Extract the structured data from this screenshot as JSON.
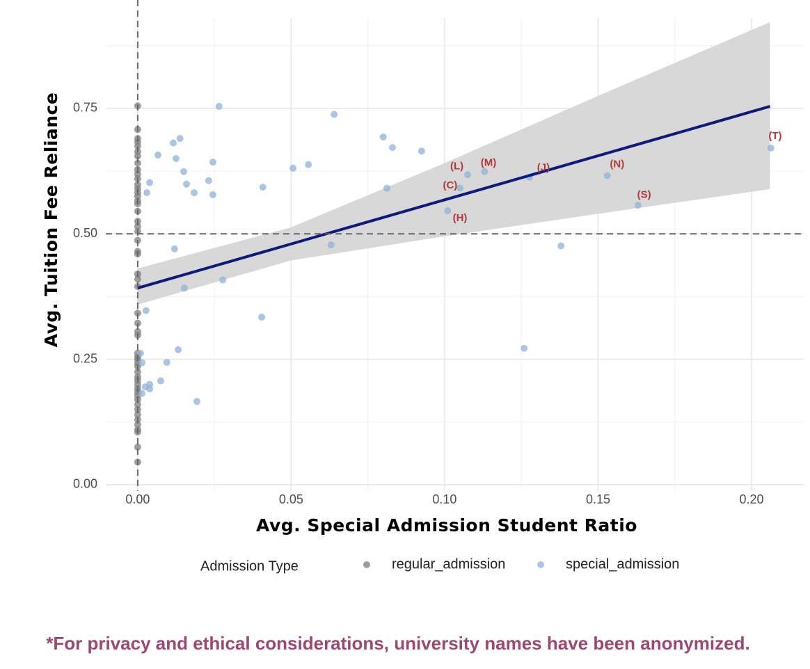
{
  "chart_data": {
    "type": "scatter",
    "xlabel": "Avg. Special Admission Student Ratio",
    "ylabel": "Avg. Tuition Fee Reliance",
    "xlim": [
      -0.0104,
      0.217
    ],
    "ylim": [
      -0.0125,
      0.93
    ],
    "xticks": [
      {
        "value": 0,
        "label": "0.00"
      },
      0.05,
      {
        "value": 0.1,
        "label": "0.10"
      },
      0.15,
      {
        "value": 0.2,
        "label": "0.20"
      }
    ],
    "yticks": [
      {
        "value": 0,
        "label": "0.00"
      },
      0.25,
      {
        "value": 0.5,
        "label": "0.50"
      },
      0.75
    ],
    "xminor": [
      0.025,
      0.075,
      0.125,
      0.175
    ],
    "yminor": [
      0.125,
      0.375,
      0.625,
      0.875
    ],
    "grid": true,
    "vlines": [
      0
    ],
    "hlines": [
      0.5
    ],
    "legend_title": "Admission Type",
    "legend": "bottom",
    "series": [
      {
        "name": "regular_admission",
        "color": "#7f7f7f",
        "x": [
          0,
          0,
          0,
          0,
          0,
          0,
          0,
          0,
          0,
          0,
          0,
          0,
          0,
          0,
          0,
          0,
          0,
          0,
          0,
          0,
          0,
          0,
          0,
          0,
          0,
          0,
          0,
          0,
          0,
          0,
          0,
          0,
          0,
          0,
          0,
          0,
          0,
          0,
          0,
          0,
          0,
          0,
          0,
          0,
          0,
          0,
          0,
          0,
          0,
          0,
          0,
          0,
          0
        ],
        "values": [
          0.755,
          0.708,
          0.69,
          0.683,
          0.675,
          0.664,
          0.655,
          0.641,
          0.628,
          0.619,
          0.61,
          0.598,
          0.59,
          0.582,
          0.575,
          0.566,
          0.56,
          0.545,
          0.525,
          0.515,
          0.505,
          0.487,
          0.465,
          0.46,
          0.42,
          0.41,
          0.395,
          0.342,
          0.322,
          0.305,
          0.298,
          0.262,
          0.255,
          0.25,
          0.243,
          0.236,
          0.225,
          0.215,
          0.208,
          0.2,
          0.192,
          0.185,
          0.178,
          0.17,
          0.16,
          0.15,
          0.14,
          0.13,
          0.12,
          0.11,
          0.105,
          0.075,
          0.045
        ]
      },
      {
        "name": "special_admission",
        "color": "#8fb3d6",
        "x": [
          0.0265,
          0.064,
          0.08,
          0.083,
          0.0925,
          0.0138,
          0.0116,
          0.0066,
          0.0125,
          0.0245,
          0.015,
          0.0159,
          0.0039,
          0.003,
          0.0184,
          0.0231,
          0.0245,
          0.0506,
          0.0556,
          0.0408,
          0.0812,
          0.105,
          0.1075,
          0.113,
          0.1277,
          0.153,
          0.163,
          0.2063,
          0.101,
          0.012,
          0.063,
          0.1379,
          0.0152,
          0.0277,
          0.0027,
          0.0404,
          0.1259,
          0.0009,
          0.0014,
          0.0132,
          0.0095,
          0.0075,
          0.0039,
          0.0039,
          0.0025,
          0.0014,
          0.0193
        ],
        "values": [
          0.754,
          0.738,
          0.693,
          0.672,
          0.665,
          0.69,
          0.681,
          0.657,
          0.65,
          0.643,
          0.624,
          0.599,
          0.602,
          0.582,
          0.582,
          0.606,
          0.578,
          0.631,
          0.638,
          0.593,
          0.591,
          0.591,
          0.618,
          0.624,
          0.613,
          0.616,
          0.557,
          0.671,
          0.546,
          0.47,
          0.478,
          0.476,
          0.392,
          0.408,
          0.347,
          0.334,
          0.272,
          0.262,
          0.243,
          0.269,
          0.244,
          0.207,
          0.2,
          0.191,
          0.195,
          0.182,
          0.166
        ]
      }
    ],
    "fit": {
      "color": "#0d1b7a",
      "x": [
        0,
        0.206
      ],
      "y": [
        0.392,
        0.754
      ]
    },
    "band": {
      "color": "#d6d6d6",
      "x": [
        0,
        0.05,
        0.1,
        0.15,
        0.206
      ],
      "lower": [
        0.359,
        0.447,
        0.495,
        0.54,
        0.589
      ],
      "upper": [
        0.431,
        0.513,
        0.641,
        0.775,
        0.922
      ]
    },
    "annotations": [
      {
        "text": "(T)",
        "x": 0.2077,
        "y": 0.694
      },
      {
        "text": "(N)",
        "x": 0.1562,
        "y": 0.638
      },
      {
        "text": "(S)",
        "x": 0.165,
        "y": 0.577
      },
      {
        "text": "(M)",
        "x": 0.1143,
        "y": 0.641
      },
      {
        "text": "(L)",
        "x": 0.104,
        "y": 0.634
      },
      {
        "text": "(C)",
        "x": 0.1018,
        "y": 0.596
      },
      {
        "text": "(H)",
        "x": 0.105,
        "y": 0.531
      },
      {
        "text": "(J)",
        "x": 0.1322,
        "y": 0.631
      }
    ]
  },
  "footnote": "*For privacy and ethical considerations, university names have been anonymized."
}
